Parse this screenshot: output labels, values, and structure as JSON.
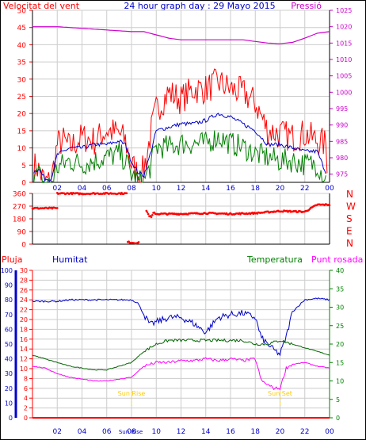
{
  "chart_data": [
    {
      "type": "line",
      "title": "24 hour graph day : 29 Mayo 2015",
      "left_label": "Velocitat del vent",
      "right_label": "Pressió",
      "x_ticks": [
        "02",
        "04",
        "06",
        "08",
        "10",
        "12",
        "14",
        "16",
        "18",
        "20",
        "22",
        "00"
      ],
      "left_axis": {
        "ticks": [
          0,
          5,
          10,
          15,
          20,
          25,
          30,
          35,
          40,
          45,
          50
        ],
        "ylim": [
          0,
          50
        ]
      },
      "right_axis": {
        "ticks": [
          975,
          980,
          985,
          990,
          995,
          1000,
          1005,
          1010,
          1015,
          1020,
          1025
        ],
        "ylim": [
          972.5,
          1025
        ]
      },
      "series": [
        {
          "color": "#ff0000",
          "hours": [
            0.1,
            0.3,
            0.7,
            1.0,
            1.5,
            2.0,
            2.5,
            3.0,
            4.0,
            5.0,
            6.0,
            7.0,
            7.5,
            8.0,
            8.4,
            8.8,
            9.2,
            9.6,
            10.0,
            11.0,
            12.0,
            13.0,
            14.0,
            15.0,
            16.0,
            17.0,
            18.0,
            19.0,
            20.0,
            21.0,
            22.0,
            23.0,
            23.7,
            23.9
          ],
          "values": [
            5,
            6,
            3,
            1,
            1,
            12,
            13,
            11,
            14,
            13,
            16,
            15,
            13,
            6,
            4,
            3,
            8,
            16,
            22,
            27,
            25,
            28,
            28,
            30,
            28,
            27,
            24,
            16,
            15,
            14,
            15,
            13,
            12,
            2
          ]
        },
        {
          "color": "#0000cc",
          "hours": [
            0.1,
            0.5,
            1.0,
            1.5,
            2.0,
            3.0,
            4.0,
            5.0,
            6.0,
            7.0,
            7.5,
            8.0,
            8.5,
            9.0,
            9.5,
            10.0,
            11.0,
            12.0,
            13.0,
            14.0,
            15.0,
            16.0,
            17.0,
            18.0,
            19.0,
            20.0,
            21.0,
            22.0,
            23.0,
            23.8
          ],
          "values": [
            3,
            4,
            1,
            1,
            8,
            10,
            10,
            11,
            11,
            12,
            11,
            6,
            3,
            2,
            8,
            15,
            16,
            17,
            17,
            18,
            20,
            19,
            17,
            15,
            11,
            11,
            10,
            9,
            9,
            2
          ]
        },
        {
          "color": "#008000",
          "hours": [
            0.1,
            0.5,
            1.0,
            1.5,
            2.0,
            3.0,
            4.0,
            5.0,
            6.0,
            7.0,
            7.5,
            8.0,
            8.5,
            9.0,
            9.5,
            10.0,
            11.0,
            12.0,
            13.0,
            14.0,
            15.0,
            16.0,
            17.0,
            18.0,
            19.0,
            20.0,
            21.0,
            22.0,
            23.0,
            23.8
          ],
          "values": [
            2,
            3,
            0,
            0,
            5,
            7,
            6,
            7,
            8,
            9,
            7,
            3,
            1,
            1,
            5,
            11,
            11,
            12,
            12,
            12,
            14,
            12,
            11,
            9,
            8,
            7,
            7,
            6,
            6,
            1
          ]
        },
        {
          "color": "#cc00cc",
          "axis": "right",
          "hours": [
            0,
            2,
            4,
            6,
            8,
            9,
            10,
            11,
            12,
            13,
            14,
            15,
            16,
            17,
            18,
            19,
            20,
            21,
            22,
            23,
            24
          ],
          "values": [
            1020,
            1020,
            1019.5,
            1019,
            1018.5,
            1018.5,
            1017.5,
            1016.5,
            1016,
            1016,
            1016,
            1016,
            1016,
            1016,
            1015.5,
            1015,
            1014.8,
            1015.2,
            1016.5,
            1018,
            1018.5
          ]
        }
      ]
    },
    {
      "type": "scatter",
      "right_labels": [
        "N",
        "W",
        "S",
        "E",
        "N"
      ],
      "y_ticks": [
        0,
        90,
        180,
        270,
        360
      ],
      "ylim": [
        0,
        360
      ],
      "x_ticks": [
        "02",
        "04",
        "06",
        "08",
        "10",
        "12",
        "14",
        "16",
        "18",
        "20",
        "22",
        "00"
      ],
      "series": [
        {
          "color": "#ff0000",
          "segments": [
            {
              "hours": [
                0.0,
                1.0,
                2.0
              ],
              "values": [
                255,
                255,
                255
              ]
            },
            {
              "hours": [
                2.0,
                3.0,
                4.0,
                5.0,
                6.0,
                7.0,
                7.6
              ],
              "values": [
                360,
                360,
                358,
                360,
                360,
                360,
                360
              ]
            },
            {
              "hours": [
                7.7,
                8.2,
                8.6
              ],
              "values": [
                15,
                10,
                10
              ]
            },
            {
              "hours": [
                9.2,
                9.4,
                9.6,
                9.8,
                10.0,
                12.0,
                14.0,
                16.0,
                18.0,
                20.0,
                22.0,
                23.0,
                24.0
              ],
              "values": [
                240,
                205,
                190,
                225,
                215,
                215,
                220,
                215,
                220,
                235,
                230,
                280,
                280
              ]
            }
          ]
        }
      ]
    },
    {
      "type": "line",
      "axis_titles": {
        "pluja": "Pluja",
        "humitat": "Humitat",
        "temperatura": "Temperatura",
        "punt_rosada": "Punt rosada"
      },
      "humitat_axis": {
        "ticks": [
          0,
          10,
          20,
          30,
          40,
          50,
          60,
          70,
          80,
          90,
          100
        ],
        "ylim": [
          0,
          100
        ]
      },
      "pluja_axis": {
        "ticks": [
          0,
          2,
          4,
          6,
          8,
          10,
          12,
          14,
          16,
          18,
          20,
          22,
          24,
          26,
          28,
          30
        ],
        "ylim": [
          0,
          30
        ]
      },
      "temp_axis": {
        "ticks": [
          0,
          5,
          10,
          15,
          20,
          25,
          30,
          35,
          40
        ],
        "ylim": [
          0,
          40
        ]
      },
      "x_ticks": [
        "02",
        "04",
        "06",
        "08",
        "10",
        "12",
        "14",
        "16",
        "18",
        "20",
        "22",
        "00"
      ],
      "annotations": [
        {
          "text": "Sun Rise",
          "hour": 8.0
        },
        {
          "text": "Sun Set",
          "hour": 20.0
        }
      ],
      "bottom_marker": "Sun Rise",
      "series": [
        {
          "name": "Humitat",
          "color": "#0000cc",
          "axis": "humitat",
          "hours": [
            0,
            1,
            2,
            3,
            4,
            5,
            6,
            7,
            8,
            8.5,
            9,
            9.5,
            10,
            11,
            12,
            13,
            14,
            14.5,
            15,
            16,
            17,
            18,
            18.5,
            19,
            19.5,
            20,
            20.5,
            21,
            22,
            23,
            24
          ],
          "values": [
            79,
            79,
            79,
            80,
            80,
            80,
            80,
            80,
            80,
            78,
            70,
            63,
            65,
            68,
            68,
            64,
            58,
            63,
            68,
            70,
            71,
            68,
            54,
            50,
            46,
            43,
            55,
            72,
            80,
            81,
            80
          ]
        },
        {
          "name": "Temperatura",
          "color": "#006600",
          "axis": "temp",
          "hours": [
            0,
            1,
            2,
            3,
            4,
            5,
            6,
            7,
            8,
            9,
            10,
            11,
            12,
            13,
            14,
            15,
            16,
            17,
            18,
            19,
            20,
            21,
            22,
            23,
            24
          ],
          "values": [
            17,
            16,
            15,
            14,
            13.5,
            13,
            13,
            14,
            15,
            18,
            20,
            21,
            21,
            21,
            21,
            21,
            21,
            21,
            20,
            20,
            21,
            20,
            19,
            18,
            17
          ]
        },
        {
          "name": "Punt rosada",
          "color": "#ff00ff",
          "axis": "temp",
          "hours": [
            0,
            1,
            2,
            3,
            4,
            5,
            6,
            7,
            8,
            9,
            10,
            11,
            12,
            13,
            14,
            15,
            16,
            17,
            18,
            18.5,
            19,
            19.5,
            20,
            20.5,
            21,
            22,
            23,
            24
          ],
          "values": [
            14,
            13.5,
            12,
            11,
            10.5,
            10,
            10,
            10.5,
            11,
            14,
            15,
            15,
            15.5,
            15.5,
            16,
            15.5,
            16,
            15.5,
            16,
            10,
            9,
            8,
            8,
            13.5,
            14.5,
            15,
            14,
            13.5
          ]
        },
        {
          "name": "Pluja",
          "color": "#ff0000",
          "axis": "pluja",
          "hours": [
            0,
            24
          ],
          "values": [
            0,
            0
          ]
        }
      ]
    }
  ]
}
